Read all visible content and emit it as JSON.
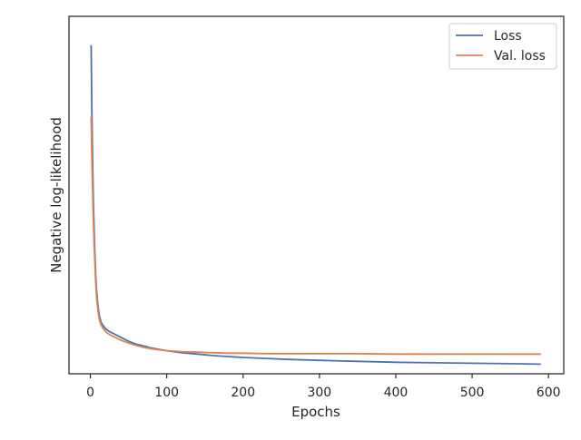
{
  "chart_data": {
    "type": "line",
    "title": "",
    "xlabel": "Epochs",
    "ylabel": "Negative log-likelihood",
    "xlim": [
      -28,
      620
    ],
    "ylim": [
      0.27,
      4.0
    ],
    "xticks": [
      0,
      100,
      200,
      300,
      400,
      500,
      600
    ],
    "y_tick_labels_shown": false,
    "grid": false,
    "legend_position": "top-right",
    "series": [
      {
        "name": "Loss",
        "color": "#4C72B0",
        "x": [
          1,
          2,
          3,
          4,
          5,
          6,
          7,
          8,
          10,
          12,
          14,
          16,
          18,
          20,
          25,
          30,
          35,
          40,
          50,
          60,
          70,
          80,
          90,
          100,
          120,
          140,
          160,
          180,
          200,
          230,
          260,
          300,
          350,
          400,
          450,
          500,
          550,
          590
        ],
        "y": [
          3.7,
          3.0,
          2.45,
          2.05,
          1.75,
          1.5,
          1.3,
          1.15,
          0.97,
          0.87,
          0.81,
          0.78,
          0.76,
          0.74,
          0.71,
          0.69,
          0.67,
          0.65,
          0.61,
          0.58,
          0.56,
          0.54,
          0.525,
          0.51,
          0.49,
          0.475,
          0.46,
          0.45,
          0.44,
          0.43,
          0.42,
          0.41,
          0.4,
          0.39,
          0.385,
          0.38,
          0.375,
          0.37
        ]
      },
      {
        "name": "Val. loss",
        "color": "#DD8452",
        "x": [
          1,
          2,
          3,
          4,
          5,
          6,
          7,
          8,
          10,
          12,
          14,
          16,
          18,
          20,
          25,
          30,
          35,
          40,
          50,
          60,
          70,
          80,
          90,
          100,
          120,
          140,
          160,
          180,
          200,
          230,
          260,
          300,
          350,
          400,
          450,
          500,
          550,
          590
        ],
        "y": [
          2.95,
          2.5,
          2.15,
          1.85,
          1.6,
          1.4,
          1.22,
          1.08,
          0.92,
          0.83,
          0.78,
          0.75,
          0.73,
          0.71,
          0.68,
          0.66,
          0.64,
          0.62,
          0.59,
          0.565,
          0.545,
          0.53,
          0.52,
          0.51,
          0.5,
          0.495,
          0.49,
          0.485,
          0.485,
          0.48,
          0.48,
          0.48,
          0.48,
          0.475,
          0.475,
          0.475,
          0.475,
          0.475
        ]
      }
    ]
  }
}
